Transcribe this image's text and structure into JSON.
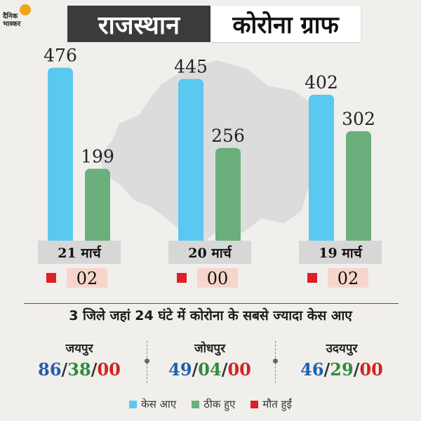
{
  "brand": {
    "logo_text": "दैनिक\nभास्कर"
  },
  "title": {
    "left": "राजस्थान",
    "right": "कोरोना ग्राफ"
  },
  "colors": {
    "cases": "#5ac8f0",
    "recovered": "#6aaf7c",
    "deaths": "#dd1f26",
    "label_bg": "#d7d7d7",
    "death_bg": "#f6d6cc"
  },
  "chart_data": {
    "type": "bar",
    "categories": [
      "21 मार्च",
      "20 मार्च",
      "19 मार्च"
    ],
    "series": [
      {
        "name": "केस आए",
        "values": [
          476,
          445,
          402
        ]
      },
      {
        "name": "ठीक हुए",
        "values": [
          199,
          256,
          302
        ]
      },
      {
        "name": "मौत हुईं",
        "values": [
          "02",
          "00",
          "02"
        ]
      }
    ],
    "ylim": [
      0,
      500
    ],
    "grid": false,
    "legend": "bottom"
  },
  "subtitle": "3 जिले जहां 24 घंटे में कोरोना के सबसे ज्यादा केस आए",
  "districts": [
    {
      "name": "जयपुर",
      "cases": "86",
      "recovered": "38",
      "deaths": "00"
    },
    {
      "name": "जोधपुर",
      "cases": "49",
      "recovered": "04",
      "deaths": "00"
    },
    {
      "name": "उदयपुर",
      "cases": "46",
      "recovered": "29",
      "deaths": "00"
    }
  ],
  "legend": {
    "cases": "केस आए",
    "recovered": "ठीक हुए",
    "deaths": "मौत हुईं"
  }
}
